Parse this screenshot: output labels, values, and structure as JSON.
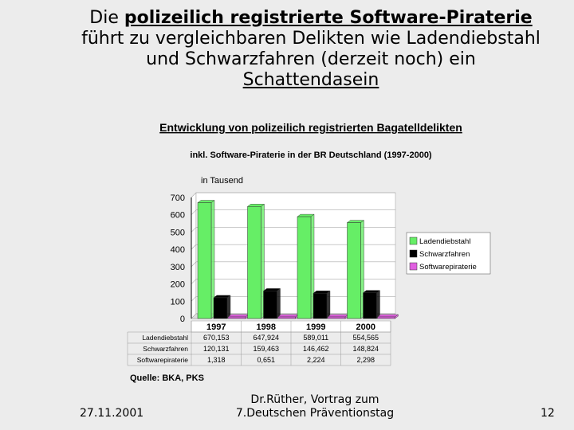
{
  "slide": {
    "title_part1": "Die ",
    "title_highlight": "polizeilich registrierte Software-Piraterie",
    "title_line2": "führt zu vergleichbaren Delikten wie Ladendiebstahl",
    "title_line3": "und Schwarzfahren (derzeit noch) ein",
    "title_line4": "Schattendasein"
  },
  "footer": {
    "date": "27.11.2001",
    "center_line1": "Dr.Rüther, Vortrag zum",
    "center_line2": "7.Deutschen Präventionstag",
    "page": "12"
  },
  "chart_data": {
    "type": "bar",
    "title": "Entwicklung von polizeilich registrierten Bagatelldelikten",
    "subtitle": "inkl. Software-Piraterie in der BR Deutschland (1997-2000)",
    "ylabel": "in Tausend",
    "ylim": [
      0,
      700
    ],
    "yticks": [
      0,
      100,
      200,
      300,
      400,
      500,
      600,
      700
    ],
    "categories": [
      "1997",
      "1998",
      "1999",
      "2000"
    ],
    "series": [
      {
        "name": "Ladendiebstahl",
        "color": "#66ee66",
        "values": [
          670.153,
          647.924,
          589.011,
          554.565
        ],
        "labels": [
          "670,153",
          "647,924",
          "589,011",
          "554,565"
        ]
      },
      {
        "name": "Schwarzfahren",
        "color": "#000000",
        "values": [
          120.131,
          159.463,
          146.462,
          148.824
        ],
        "labels": [
          "120,131",
          "159,463",
          "146,462",
          "148,824"
        ]
      },
      {
        "name": "Softwarepiraterie",
        "color": "#e060e0",
        "values": [
          1.318,
          0.651,
          2.224,
          2.298
        ],
        "labels": [
          "1,318",
          "0,651",
          "2,224",
          "2,298"
        ]
      }
    ],
    "legend_position": "right",
    "source": "Quelle: BKA, PKS"
  }
}
